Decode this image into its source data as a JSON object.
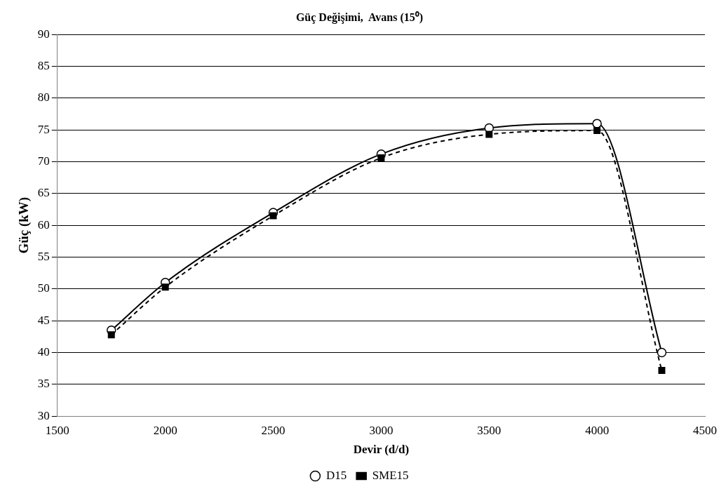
{
  "chart_data": {
    "type": "line",
    "title": "Güç Değişimi,  Avans (15⁰)",
    "xlabel": "Devir (d/d)",
    "ylabel": "Güç (kW)",
    "x": [
      1750,
      2000,
      2500,
      3000,
      3500,
      4000,
      4300
    ],
    "series": [
      {
        "name": "D15",
        "color": "#000000",
        "marker": "circle",
        "line_style": "solid",
        "values": [
          43.5,
          51,
          62,
          71.2,
          75.3,
          76,
          40
        ]
      },
      {
        "name": "SME15",
        "color": "#000000",
        "marker": "square",
        "line_style": "dashed",
        "values": [
          42.8,
          50.3,
          61.5,
          70.6,
          74.3,
          74.9,
          37.2
        ]
      }
    ],
    "xlim": [
      1500,
      4500
    ],
    "xticks": [
      1500,
      2000,
      2500,
      3000,
      3500,
      4000,
      4500
    ],
    "ylim": [
      30,
      90
    ],
    "yticks": [
      30,
      35,
      40,
      45,
      50,
      55,
      60,
      65,
      70,
      75,
      80,
      85,
      90
    ],
    "grid": "y",
    "legend": "bottom"
  }
}
